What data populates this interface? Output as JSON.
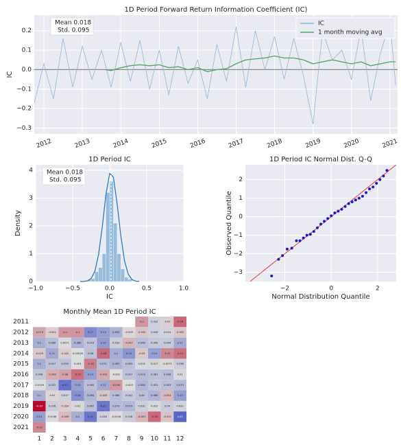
{
  "chart_data": [
    {
      "type": "line",
      "title": "1D Period Forward Return Information Coefficient (IC)",
      "ylabel": "IC",
      "annotation": [
        "Mean 0.018",
        "Std. 0.095"
      ],
      "xlim": [
        2011.75,
        2021.2
      ],
      "xticks": [
        2012,
        2013,
        2014,
        2015,
        2016,
        2017,
        2018,
        2019,
        2020,
        2021
      ],
      "ylim": [
        -0.33,
        0.28
      ],
      "yticks": [
        {
          "value": -0.3,
          "label": "−0.3"
        },
        {
          "value": -0.2,
          "label": "−0.2"
        },
        {
          "value": -0.1,
          "label": "−0.1"
        },
        {
          "value": 0,
          "label": "0.0"
        },
        0.1,
        0.2
      ],
      "hline": 0,
      "grid": true,
      "legend": "upper-right",
      "series": [
        {
          "name": "IC",
          "color": "#8fb5d8",
          "x": [
            2011.75,
            2012.0,
            2012.25,
            2012.5,
            2012.75,
            2013.0,
            2013.25,
            2013.5,
            2013.75,
            2014.0,
            2014.25,
            2014.5,
            2014.75,
            2015.0,
            2015.25,
            2015.5,
            2015.75,
            2016.0,
            2016.25,
            2016.5,
            2016.75,
            2017.0,
            2017.25,
            2017.5,
            2017.75,
            2018.0,
            2018.25,
            2018.5,
            2018.75,
            2019.0,
            2019.25,
            2019.5,
            2019.75,
            2020.0,
            2020.25,
            2020.5,
            2020.75,
            2021.0,
            2021.15
          ],
          "values": [
            -0.17,
            0.03,
            -0.15,
            0.16,
            -0.09,
            0.12,
            -0.05,
            0.1,
            -0.09,
            0.14,
            -0.06,
            0.15,
            -0.1,
            0.1,
            -0.13,
            0.12,
            -0.07,
            0.05,
            -0.15,
            0.13,
            -0.06,
            0.22,
            -0.09,
            0.2,
            0.0,
            0.17,
            -0.05,
            0.16,
            -0.03,
            -0.28,
            0.2,
            0.05,
            0.1,
            -0.05,
            0.21,
            -0.16,
            0.08,
            0.25,
            -0.08
          ]
        },
        {
          "name": "1 month moving avg",
          "color": "#55a868",
          "x": [
            2013.6,
            2013.75,
            2014.0,
            2014.25,
            2014.5,
            2014.75,
            2015.0,
            2015.25,
            2015.5,
            2015.75,
            2016.0,
            2016.25,
            2016.5,
            2016.75,
            2017.0,
            2017.25,
            2017.5,
            2017.75,
            2018.0,
            2018.25,
            2018.5,
            2018.75,
            2019.0,
            2019.25,
            2019.5,
            2019.75,
            2020.0,
            2020.25,
            2020.5,
            2020.75,
            2021.0,
            2021.15
          ],
          "values": [
            0.0,
            -0.005,
            0.01,
            0.02,
            0.025,
            0.02,
            0.025,
            0.01,
            0.015,
            0.0,
            0.01,
            -0.01,
            0.0,
            0.005,
            0.03,
            0.05,
            0.055,
            0.06,
            0.07,
            0.06,
            0.06,
            0.05,
            0.03,
            0.04,
            0.05,
            0.04,
            0.03,
            0.04,
            0.02,
            0.03,
            0.04,
            0.04
          ]
        }
      ]
    },
    {
      "type": "histogram",
      "title": "1D Period IC",
      "xlabel": "IC",
      "ylabel": "Density",
      "annotation": [
        "Mean 0.018",
        "Std. 0.095"
      ],
      "color": "#7fb2d5",
      "line_color": "#2f7bb6",
      "xlim": [
        -1,
        1
      ],
      "xticks": [
        {
          "value": -1,
          "label": "−1.0"
        },
        {
          "value": -0.5,
          "label": "−0.5"
        },
        {
          "value": 0,
          "label": "0.0"
        },
        {
          "value": 0.5,
          "label": "0.5"
        },
        {
          "value": 1,
          "label": "1.0"
        }
      ],
      "ylim": [
        0,
        4.2
      ],
      "yticks": [
        0,
        1,
        2,
        3,
        4
      ],
      "grid": true,
      "bins": [
        -0.3,
        -0.25,
        -0.2,
        -0.15,
        -0.1,
        -0.05,
        0.0,
        0.05,
        0.1,
        0.15,
        0.2,
        0.25,
        0.3
      ],
      "values": [
        0.07,
        0.1,
        0.35,
        0.5,
        1.0,
        3.2,
        3.6,
        2.1,
        1.0,
        0.45,
        0.15,
        0.08
      ],
      "kde": {
        "x": [
          -0.4,
          -0.35,
          -0.3,
          -0.25,
          -0.2,
          -0.15,
          -0.1,
          -0.05,
          0.0,
          0.05,
          0.1,
          0.15,
          0.2,
          0.25,
          0.3,
          0.35,
          0.4
        ],
        "values": [
          0.0007,
          0.005,
          0.025,
          0.11,
          0.37,
          0.97,
          1.97,
          3.14,
          3.89,
          3.76,
          2.81,
          1.66,
          0.75,
          0.27,
          0.07,
          0.016,
          0.003
        ]
      },
      "mean_line": 0.018
    },
    {
      "type": "scatter",
      "title": "1D Period IC Normal Dist. Q-Q",
      "xlabel": "Normal Distribution Quantile",
      "ylabel": "Observed Quantile",
      "color": "#1a1acc",
      "line_color": "#e8393a",
      "xlim": [
        -3.7,
        2.8
      ],
      "xticks": [
        {
          "value": -2,
          "label": "−2"
        },
        0,
        2
      ],
      "ylim": [
        -3.5,
        2.8
      ],
      "yticks": [
        {
          "value": -3,
          "label": "−3"
        },
        {
          "value": -2,
          "label": "−2"
        },
        {
          "value": -1,
          "label": "−1"
        },
        0,
        1,
        2
      ],
      "grid": true,
      "x": [
        -2.57,
        -2.27,
        -2.1,
        -1.9,
        -1.7,
        -1.5,
        -1.35,
        -1.2,
        -1.05,
        -0.9,
        -0.75,
        -0.6,
        -0.45,
        -0.3,
        -0.15,
        0.0,
        0.15,
        0.3,
        0.45,
        0.6,
        0.75,
        0.9,
        1.05,
        1.2,
        1.35,
        1.5,
        1.65,
        1.8,
        1.95,
        2.1,
        2.25,
        2.4
      ],
      "values": [
        -3.2,
        -2.3,
        -2.1,
        -1.75,
        -1.7,
        -1.3,
        -1.3,
        -1.15,
        -1.0,
        -0.95,
        -0.8,
        -0.6,
        -0.4,
        -0.25,
        -0.1,
        0.05,
        0.2,
        0.3,
        0.4,
        0.55,
        0.7,
        0.8,
        0.9,
        1.0,
        1.1,
        1.3,
        1.5,
        1.6,
        1.8,
        2.0,
        2.2,
        2.5
      ],
      "fit_line": {
        "x": [
          -3.7,
          2.8
        ],
        "values": [
          -3.7,
          2.8
        ]
      }
    },
    {
      "type": "heatmap",
      "title": "Monthly Mean 1D Period IC",
      "x_categories": [
        "1",
        "2",
        "3",
        "4",
        "5",
        "6",
        "7",
        "8",
        "9",
        "10",
        "11",
        "12"
      ],
      "y_categories": [
        "2011",
        "2012",
        "2013",
        "2014",
        "2015",
        "2016",
        "2017",
        "2018",
        "2019",
        "2020",
        "2021"
      ],
      "zlim": [
        -0.3,
        0.3
      ],
      "colormap": [
        "#b40426",
        "#dddddd",
        "#3b4cc0"
      ],
      "values": [
        [
          null,
          null,
          null,
          null,
          null,
          null,
          null,
          null,
          -0.1,
          0.032,
          -0.02,
          -0.16
        ],
        [
          -0.074,
          -0.022,
          -0.1,
          -0.1,
          0.17,
          0.13,
          0.093,
          -0.009,
          -0.033,
          0.028,
          0.024,
          -0.032
        ],
        [
          0.1,
          0.066,
          0.0071,
          0.089,
          0.053,
          0.14,
          0.033,
          -0.057,
          0.066,
          0.045,
          0.044,
          0.11
        ],
        [
          -0.029,
          0.11,
          -0.022,
          0.00016,
          0.06,
          -0.16,
          0.1,
          0.15,
          -0.03,
          0.13,
          -0.12,
          -0.15
        ],
        [
          0.1,
          0.057,
          0.055,
          0.003,
          -0.13,
          0.071,
          0.087,
          0.063,
          0.015,
          0.017,
          -0.0071,
          0.036
        ],
        [
          0.048,
          -0.065,
          -0.08,
          -0.15,
          0.13,
          -0.073,
          -0.002,
          0.057,
          0.073,
          0.061,
          0.068,
          0.01
        ],
        [
          -0.0019,
          0.052,
          0.22,
          0.13,
          0.065,
          0.11,
          -0.094,
          -0.003,
          0.084,
          0.053,
          0.063,
          0.073
        ],
        [
          0.1,
          -0.01,
          0.027,
          0.16,
          0.084,
          -0.033,
          0.066,
          0.042,
          0.06,
          0.084,
          -0.051,
          0.13
        ],
        [
          -0.29,
          0.036,
          -0.024,
          0.01,
          0.067,
          0.21,
          0.073,
          0.079,
          0.031,
          0.012,
          0.04,
          0.022
        ],
        [
          0.13,
          0.0046,
          -0.049,
          0.1,
          0.21,
          0.026,
          -0.0026,
          0.038,
          -0.057,
          -0.16,
          -0.037,
          0.25
        ],
        [
          -0.12,
          null,
          null,
          null,
          null,
          null,
          null,
          null,
          null,
          null,
          null,
          null
        ]
      ]
    }
  ]
}
